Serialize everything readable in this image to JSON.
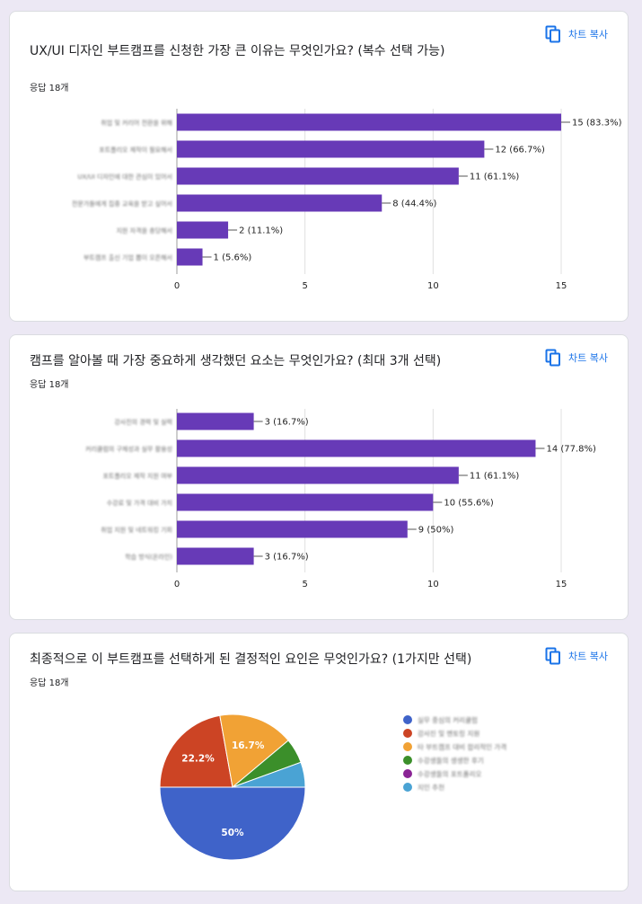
{
  "copy_label": "차트 복사",
  "colors": {
    "bar": "#673ab7",
    "accent": "#1a73e8"
  },
  "charts": [
    {
      "title": "UX/UI 디자인 부트캠프를 신청한 가장 큰 이유는 무엇인가요? (복수 선택 가능)",
      "responses": "응답 18개"
    },
    {
      "title": "캠프를 알아볼 때 가장 중요하게 생각했던 요소는 무엇인가요? (최대 3개 선택)",
      "responses": "응답 18개"
    },
    {
      "title": "최종적으로 이 부트캠프를 선택하게 된 결정적인 요인은 무엇인가요? (1가지만 선택)",
      "responses": "응답 18개"
    }
  ],
  "chart_data": [
    {
      "type": "bar",
      "orientation": "horizontal",
      "categories": [
        "취업 및 커리어 전환을 위해",
        "포트폴리오 제작이 필요해서",
        "UX/UI 디자인에 대한 관심이 있어서",
        "전문가들에게 집중 교육을 받고 싶어서",
        "지원 자격을 충당해서",
        "부트캠프 출신 기업 뽑이 오픈해서"
      ],
      "values": [
        15,
        12,
        11,
        8,
        2,
        1
      ],
      "data_labels": [
        "15 (83.3%)",
        "12 (66.7%)",
        "11 (61.1%)",
        "8 (44.4%)",
        "2 (11.1%)",
        "1 (5.6%)"
      ],
      "xlim": [
        0,
        15
      ],
      "x_ticks": [
        "0",
        "5",
        "10",
        "15"
      ],
      "grid": true
    },
    {
      "type": "bar",
      "orientation": "horizontal",
      "categories": [
        "강사진의 경력 및 실력",
        "커리큘럼의 구체성과 실무 활용성",
        "포트폴리오 제작 지원 여부",
        "수강료 및 가격 대비 가치",
        "취업 지원 및 네트워킹 기회",
        "학습 방식(온라인)"
      ],
      "values": [
        3,
        14,
        11,
        10,
        9,
        3
      ],
      "data_labels": [
        "3 (16.7%)",
        "14 (77.8%)",
        "11 (61.1%)",
        "10 (55.6%)",
        "9 (50%)",
        "3 (16.7%)"
      ],
      "xlim": [
        0,
        15
      ],
      "x_ticks": [
        "0",
        "5",
        "10",
        "15"
      ],
      "grid": true
    },
    {
      "type": "pie",
      "slices": [
        {
          "label": "실무 중심의 커리큘럼",
          "percent": 50,
          "color": "#3f63c9",
          "data_label": "50%"
        },
        {
          "label": "강사진 및 멘토링 지원",
          "percent": 22.2,
          "color": "#cc4424",
          "data_label": "22.2%"
        },
        {
          "label": "타 부트캠프 대비 합리적인 가격",
          "percent": 16.7,
          "color": "#f1a235",
          "data_label": "16.7%"
        },
        {
          "label": "수강생들의 생생한 후기",
          "percent": 5.55,
          "color": "#3b8f2a",
          "data_label": ""
        },
        {
          "label": "수강생들의 포트폴리오",
          "percent": 0,
          "color": "#8a2495",
          "data_label": ""
        },
        {
          "label": "지인 추천",
          "percent": 5.55,
          "color": "#4aa3d4",
          "data_label": ""
        }
      ],
      "legend_position": "right"
    }
  ]
}
